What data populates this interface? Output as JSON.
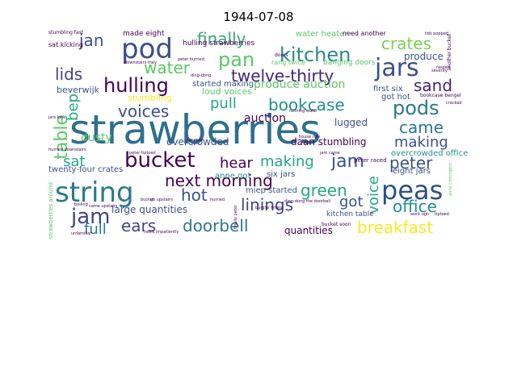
{
  "title": "1944-07-08",
  "words": [
    {
      "text": "strawberries",
      "color": "#2f6e8e"
    },
    {
      "text": "pod",
      "color": "#3b4f8a"
    },
    {
      "text": "kitchen",
      "color": "#2c8a8a"
    },
    {
      "text": "pan",
      "color": "#5ac864"
    },
    {
      "text": "finally",
      "color": "#3da682"
    },
    {
      "text": "jan",
      "color": "#3b4f8a"
    },
    {
      "text": "crates",
      "color": "#7ad151"
    },
    {
      "text": "jars",
      "color": "#3b4f8a"
    },
    {
      "text": "water",
      "color": "#5ac864"
    },
    {
      "text": "twelve-thirty",
      "color": "#482173"
    },
    {
      "text": "lids",
      "color": "#414487"
    },
    {
      "text": "hulling",
      "color": "#440154"
    },
    {
      "text": "sand",
      "color": "#482173"
    },
    {
      "text": "produce auction",
      "color": "#5ac864"
    },
    {
      "text": "bookcase",
      "color": "#21918c"
    },
    {
      "text": "pull",
      "color": "#22a884"
    },
    {
      "text": "pods",
      "color": "#2a788e"
    },
    {
      "text": "voices",
      "color": "#3b528b"
    },
    {
      "text": "table",
      "color": "#5ac864"
    },
    {
      "text": "bep",
      "color": "#22a884"
    },
    {
      "text": "came",
      "color": "#2a788e"
    },
    {
      "text": "making",
      "color": "#3b528b"
    },
    {
      "text": "bucket",
      "color": "#440154"
    },
    {
      "text": "hear",
      "color": "#440154"
    },
    {
      "text": "making",
      "color": "#22a884"
    },
    {
      "text": "jam",
      "color": "#3b528b"
    },
    {
      "text": "peter",
      "color": "#3b528b"
    },
    {
      "text": "sat",
      "color": "#22a884"
    },
    {
      "text": "next morning",
      "color": "#440154"
    },
    {
      "text": "string",
      "color": "#2a788e"
    },
    {
      "text": "green",
      "color": "#22a884"
    },
    {
      "text": "peas",
      "color": "#2c4f8a"
    },
    {
      "text": "hot",
      "color": "#3b528b"
    },
    {
      "text": "linings",
      "color": "#414487"
    },
    {
      "text": "voice",
      "color": "#22a884"
    },
    {
      "text": "got",
      "color": "#3b528b"
    },
    {
      "text": "jam",
      "color": "#414487"
    },
    {
      "text": "office",
      "color": "#21918c"
    },
    {
      "text": "ears",
      "color": "#414487"
    },
    {
      "text": "doorbell",
      "color": "#2a788e"
    },
    {
      "text": "breakfast",
      "color": "#fde725"
    },
    {
      "text": "full",
      "color": "#2a788e"
    },
    {
      "text": "large quantities",
      "color": "#3b528b"
    },
    {
      "text": "quantities",
      "color": "#440154"
    },
    {
      "text": "auction",
      "color": "#440154"
    },
    {
      "text": "beverwijk",
      "color": "#3b528b"
    },
    {
      "text": "produce",
      "color": "#3b528b"
    },
    {
      "text": "dusty",
      "color": "#5ac864"
    },
    {
      "text": "lugged",
      "color": "#3b528b"
    },
    {
      "text": "twenty-four crates",
      "color": "#3b528b"
    },
    {
      "text": "daan stumbling",
      "color": "#440154"
    },
    {
      "text": "six jars",
      "color": "#3b528b"
    },
    {
      "text": "eight jars",
      "color": "#3b528b"
    },
    {
      "text": "overcrowded office",
      "color": "#21918c"
    },
    {
      "text": "anne got",
      "color": "#21918c"
    },
    {
      "text": "miep started",
      "color": "#3b528b"
    },
    {
      "text": "made eight",
      "color": "#440154"
    },
    {
      "text": "water heater",
      "color": "#5ac864"
    },
    {
      "text": "need another",
      "color": "#440154"
    },
    {
      "text": "started making",
      "color": "#3b528b"
    },
    {
      "text": "first six",
      "color": "#3b528b"
    },
    {
      "text": "got hot",
      "color": "#3b528b"
    },
    {
      "text": "kitchen table",
      "color": "#3b528b"
    },
    {
      "text": "hulling strawberries",
      "color": "#440154"
    },
    {
      "text": "stumbling",
      "color": "#fde725"
    },
    {
      "text": "loud voices",
      "color": "#5ac864"
    },
    {
      "text": "banging doors",
      "color": "#5ac864"
    },
    {
      "text": "rang twice",
      "color": "#5ac864"
    },
    {
      "text": "overcrowded",
      "color": "#3b528b"
    },
    {
      "text": "sat kicking",
      "color": "#440154"
    },
    {
      "text": "stumbling fast",
      "color": "#440154"
    },
    {
      "text": "downstairs they",
      "color": "#440154"
    },
    {
      "text": "peter hurried",
      "color": "#440154"
    },
    {
      "text": "ding-dong",
      "color": "#440154"
    },
    {
      "text": "doors",
      "color": "#440154"
    },
    {
      "text": "another bucket",
      "color": "#440154"
    },
    {
      "text": "bookcase bengel",
      "color": "#440154"
    },
    {
      "text": "peter tiptoed",
      "color": "#440154"
    },
    {
      "text": "jam came",
      "color": "#440154"
    },
    {
      "text": "bucket soon",
      "color": "#440154"
    },
    {
      "text": "peter raced",
      "color": "#440154"
    },
    {
      "text": "ding-dong the doorbell",
      "color": "#440154"
    },
    {
      "text": "strawberries around",
      "color": "#5ac864"
    },
    {
      "text": "work ugh",
      "color": "#440154"
    },
    {
      "text": "tiptoed",
      "color": "#440154"
    },
    {
      "text": "anne contingent",
      "color": "#5ac864"
    },
    {
      "text": "unfamiliar",
      "color": "#440154"
    },
    {
      "text": "boiling",
      "color": "#440154"
    },
    {
      "text": "heels impatiently",
      "color": "#440154"
    },
    {
      "text": "hurried downstairs",
      "color": "#440154"
    },
    {
      "text": "go upstairs",
      "color": "#440154"
    },
    {
      "text": "came upstairs",
      "color": "#440154"
    },
    {
      "text": "bucket",
      "color": "#440154"
    },
    {
      "text": "lids popped",
      "color": "#440154"
    },
    {
      "text": "jars look",
      "color": "#440154"
    },
    {
      "text": "running water",
      "color": "#440154"
    },
    {
      "text": "house rule",
      "color": "#440154"
    },
    {
      "text": "finally peter",
      "color": "#440154"
    },
    {
      "text": "burglar finally",
      "color": "#440154"
    },
    {
      "text": "seventy",
      "color": "#440154"
    },
    {
      "text": "unusual",
      "color": "#440154"
    },
    {
      "text": "hurried",
      "color": "#440154"
    },
    {
      "text": "cracked",
      "color": "#440154"
    },
    {
      "text": "rasped",
      "color": "#440154"
    }
  ]
}
